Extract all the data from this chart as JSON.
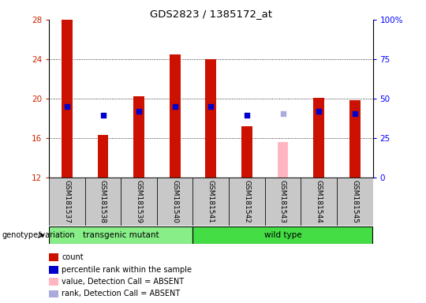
{
  "title": "GDS2823 / 1385172_at",
  "samples": [
    "GSM181537",
    "GSM181538",
    "GSM181539",
    "GSM181540",
    "GSM181541",
    "GSM181542",
    "GSM181543",
    "GSM181544",
    "GSM181545"
  ],
  "count_values": [
    28.0,
    16.3,
    20.2,
    24.5,
    24.0,
    17.2,
    null,
    20.1,
    19.8
  ],
  "count_absent_values": [
    null,
    null,
    null,
    null,
    null,
    null,
    15.6,
    null,
    null
  ],
  "rank_values": [
    19.2,
    null,
    18.7,
    19.2,
    19.2,
    null,
    null,
    18.7,
    18.5
  ],
  "rank_absent_values": [
    null,
    null,
    null,
    null,
    null,
    null,
    18.5,
    null,
    null
  ],
  "rank_small_markers": [
    null,
    18.3,
    null,
    null,
    null,
    18.3,
    null,
    null,
    null
  ],
  "ylim": [
    12,
    28
  ],
  "y_ticks": [
    12,
    16,
    20,
    24,
    28
  ],
  "y_right_labels": [
    "0",
    "25",
    "50",
    "75",
    "100%"
  ],
  "y_right_tick_positions": [
    12,
    16,
    20,
    24,
    28
  ],
  "groups": [
    {
      "label": "transgenic mutant",
      "start": 0,
      "end": 3,
      "color": "#88EE88"
    },
    {
      "label": "wild type",
      "start": 4,
      "end": 8,
      "color": "#44DD44"
    }
  ],
  "group_label": "genotype/variation",
  "bar_color": "#CC1100",
  "bar_absent_color": "#FFB6C1",
  "rank_color": "#0000CC",
  "rank_absent_color": "#AAAADD",
  "bg_color": "#C8C8C8",
  "plot_bg": "#FFFFFF",
  "bar_width": 0.3,
  "legend_items": [
    {
      "label": "count",
      "color": "#CC1100"
    },
    {
      "label": "percentile rank within the sample",
      "color": "#0000CC"
    },
    {
      "label": "value, Detection Call = ABSENT",
      "color": "#FFB6C1"
    },
    {
      "label": "rank, Detection Call = ABSENT",
      "color": "#AAAADD"
    }
  ]
}
